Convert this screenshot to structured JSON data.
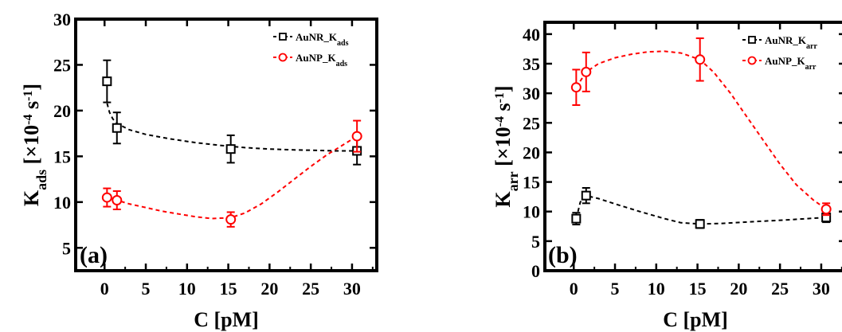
{
  "chart_data": [
    {
      "type": "scatter",
      "panel_label": "(a)",
      "xlabel": "C [pM]",
      "ylabel": {
        "main": "K",
        "sub": "ads",
        "unit_pre": " [×10",
        "exp": "-4",
        "unit_mid": " s",
        "exp2": "-1",
        "unit_post": "]"
      },
      "xlim": [
        -3.5,
        33
      ],
      "ylim": [
        2.5,
        30
      ],
      "xticks": [
        0,
        5,
        10,
        15,
        20,
        25,
        30
      ],
      "yticks": [
        5,
        10,
        15,
        20,
        25,
        30
      ],
      "legend_position": "top-right",
      "series": [
        {
          "name": "AuNR_K",
          "name_sub": "ads",
          "marker": "square",
          "color": "#000000",
          "x": [
            0.3,
            1.5,
            15.3,
            30.6
          ],
          "y": [
            23.2,
            18.1,
            15.8,
            15.6
          ],
          "err": [
            2.3,
            1.7,
            1.5,
            1.5
          ],
          "fit_x": [
            0.3,
            0.6,
            1.0,
            1.5,
            3,
            5,
            8,
            11,
            14,
            17,
            20,
            23,
            26,
            28,
            30.6
          ],
          "fit_y": [
            20.8,
            19.8,
            19.1,
            18.6,
            17.9,
            17.4,
            16.9,
            16.5,
            16.2,
            15.95,
            15.8,
            15.7,
            15.65,
            15.6,
            15.6
          ]
        },
        {
          "name": "AuNP_K",
          "name_sub": "ads",
          "marker": "circle",
          "color": "#ff0000",
          "x": [
            0.3,
            1.5,
            15.3,
            30.6
          ],
          "y": [
            10.5,
            10.2,
            8.1,
            17.2
          ],
          "err": [
            1.0,
            1.0,
            0.8,
            1.7
          ],
          "fit_x": [
            0.3,
            1.5,
            3,
            5,
            7,
            9,
            11,
            13,
            15.3,
            17,
            19,
            21,
            23,
            25,
            27,
            29,
            30.6
          ],
          "fit_y": [
            10.5,
            10.2,
            9.8,
            9.4,
            9.0,
            8.7,
            8.4,
            8.2,
            8.3,
            8.8,
            9.8,
            11.1,
            12.5,
            13.9,
            15.2,
            16.3,
            17.2
          ]
        }
      ]
    },
    {
      "type": "scatter",
      "panel_label": "(b)",
      "xlabel": "C [pM]",
      "ylabel": {
        "main": "K",
        "sub": "arr",
        "unit_pre": " [×10",
        "exp": "-4",
        "unit_mid": " s",
        "exp2": "-1",
        "unit_post": "]"
      },
      "xlim": [
        -3.5,
        33
      ],
      "ylim": [
        0,
        42
      ],
      "xticks": [
        0,
        5,
        10,
        15,
        20,
        25,
        30
      ],
      "yticks": [
        0,
        5,
        10,
        15,
        20,
        25,
        30,
        35,
        40
      ],
      "legend_position": "top-right",
      "series": [
        {
          "name": "AuNR_K",
          "name_sub": "arr",
          "marker": "square",
          "color": "#000000",
          "x": [
            0.3,
            1.5,
            15.3,
            30.6
          ],
          "y": [
            8.8,
            12.7,
            7.9,
            9.0
          ],
          "err": [
            1.0,
            1.3,
            0.7,
            0.8
          ],
          "fit_x": [
            0.3,
            0.8,
            1.5,
            3,
            5,
            8,
            11,
            13,
            15.3,
            18,
            22,
            26,
            30.6
          ],
          "fit_y": [
            8.8,
            11.6,
            12.7,
            12.2,
            11.3,
            10.0,
            8.8,
            8.1,
            7.9,
            8.0,
            8.3,
            8.6,
            9.0
          ]
        },
        {
          "name": "AuNP_K",
          "name_sub": "arr",
          "marker": "circle",
          "color": "#ff0000",
          "x": [
            0.3,
            1.5,
            15.3,
            30.6
          ],
          "y": [
            31.0,
            33.6,
            35.7,
            10.4
          ],
          "err": [
            3.0,
            3.3,
            3.6,
            1.0
          ],
          "fit_x": [
            0.3,
            1.5,
            3,
            5,
            7,
            9,
            11,
            13,
            15.3,
            17,
            19,
            21,
            23,
            25,
            27,
            29,
            30.6
          ],
          "fit_y": [
            31.0,
            33.6,
            35.0,
            36.0,
            36.6,
            37.0,
            37.1,
            36.8,
            35.7,
            33.5,
            30.0,
            26.0,
            22.0,
            18.0,
            14.5,
            12.0,
            10.4
          ]
        }
      ]
    }
  ]
}
